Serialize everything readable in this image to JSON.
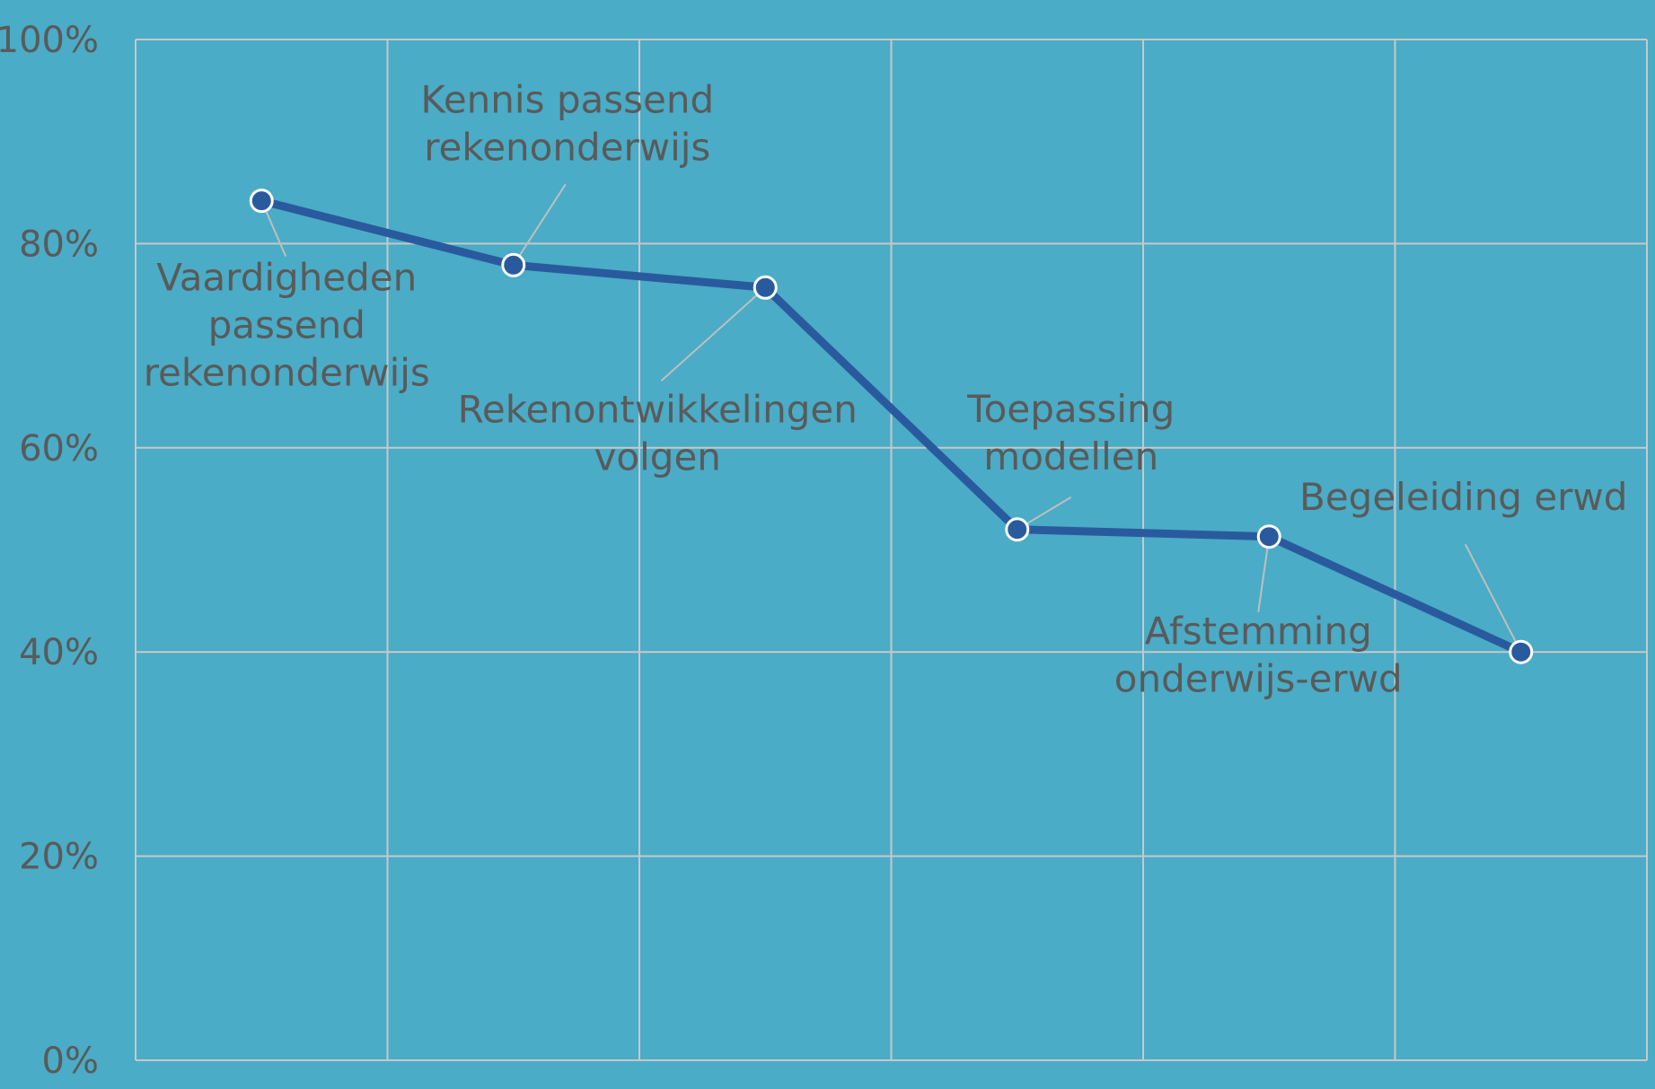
{
  "colors": {
    "background": "#4aacc6",
    "grid": "#c8c8c8",
    "line": "#2a5a9e",
    "marker_stroke": "#ffffff",
    "text": "#5a5a5a"
  },
  "chart_data": {
    "type": "line",
    "title": "",
    "xlabel": "",
    "ylabel": "",
    "ylim": [
      0,
      100
    ],
    "y_ticks": [
      {
        "value": 0,
        "label": "0%"
      },
      {
        "value": 20,
        "label": "20%"
      },
      {
        "value": 40,
        "label": "40%"
      },
      {
        "value": 60,
        "label": "60%"
      },
      {
        "value": 80,
        "label": "80%"
      },
      {
        "value": 100,
        "label": "100%"
      }
    ],
    "x_gridlines": 6,
    "grid": true,
    "legend": "none",
    "series": [
      {
        "values": [
          84.2,
          77.9,
          75.7,
          52.0,
          51.3,
          40.0
        ],
        "point_labels": [
          [
            "Vaardigheden",
            "passend",
            "rekenonderwijs"
          ],
          [
            "Kennis passend",
            "rekenonderwijs"
          ],
          [
            "Rekenontwikkelingen",
            "volgen"
          ],
          [
            "Toepassing",
            "modellen"
          ],
          [
            "Afstemming",
            "onderwijs-erwd"
          ],
          [
            "Begeleiding erwd"
          ]
        ]
      }
    ]
  }
}
